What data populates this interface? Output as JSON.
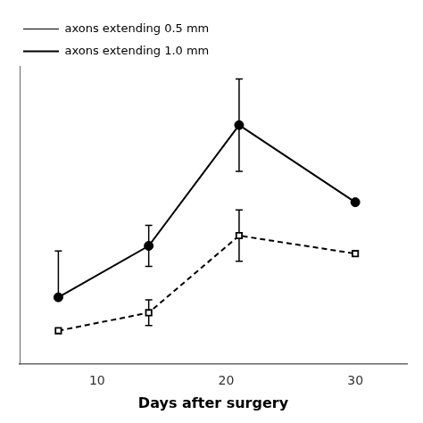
{
  "chart_data": {
    "type": "line",
    "x": [
      7,
      14,
      21,
      30
    ],
    "series": [
      {
        "name": "axons extending 0.5 mm",
        "color": "#000000",
        "marker": "circle",
        "line_style": "solid",
        "values": [
          18,
          38,
          85,
          55
        ],
        "yerr_up": [
          18,
          8,
          18,
          0
        ],
        "yerr_down": [
          0,
          8,
          18,
          0
        ]
      },
      {
        "name": "axons extending 1.0 mm",
        "color": "#000000",
        "marker": "square",
        "line_style": "dashed",
        "values": [
          5,
          12,
          42,
          35
        ],
        "yerr_up": [
          0,
          5,
          10,
          0
        ],
        "yerr_down": [
          0,
          5,
          10,
          0
        ]
      }
    ],
    "xlabel": "Days after surgery",
    "xlim": [
      4,
      34
    ],
    "xticks": [
      10,
      20,
      30
    ],
    "ylim": [
      -8,
      108
    ],
    "tick_labels": "x",
    "grid": false,
    "legend": "top"
  }
}
